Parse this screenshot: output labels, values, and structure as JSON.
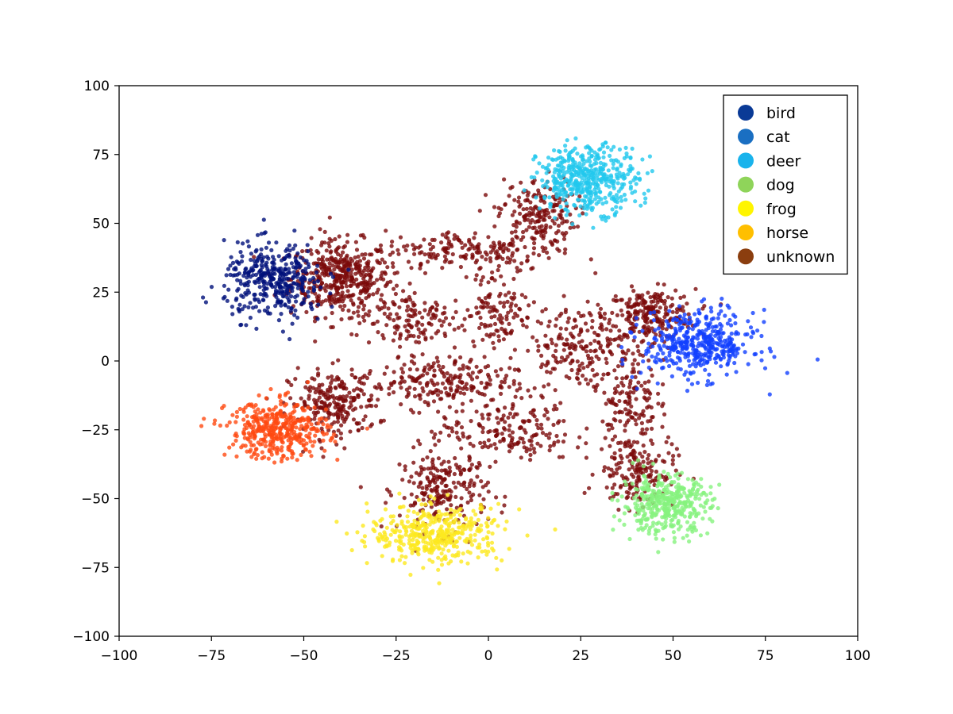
{
  "chart_data": {
    "type": "scatter",
    "title": "",
    "xlabel": "",
    "ylabel": "",
    "xlim": [
      -100,
      100
    ],
    "ylim": [
      -100,
      100
    ],
    "x_ticks": [
      -100,
      -75,
      -50,
      -25,
      0,
      25,
      50,
      75,
      100
    ],
    "y_ticks": [
      -100,
      -75,
      -50,
      -25,
      0,
      25,
      50,
      75,
      100
    ],
    "grid": false,
    "legend_position": "top-right",
    "legend": [
      {
        "name": "bird",
        "color": "#0a3a96"
      },
      {
        "name": "cat",
        "color": "#1a6fc2"
      },
      {
        "name": "deer",
        "color": "#19b3ec"
      },
      {
        "name": "dog",
        "color": "#8fd45a"
      },
      {
        "name": "frog",
        "color": "#fff500"
      },
      {
        "name": "horse",
        "color": "#ffbf00"
      },
      {
        "name": "unknown",
        "color": "#8b3e0f"
      }
    ],
    "clusters": [
      {
        "series": "bird",
        "color": "#00107a",
        "center": [
          -58,
          29
        ],
        "spread": [
          9,
          9
        ],
        "count": 380
      },
      {
        "series": "cat",
        "color": "#1240ff",
        "center": [
          57,
          6
        ],
        "spread": [
          10,
          8
        ],
        "count": 430
      },
      {
        "series": "deer",
        "color": "#22c8ee",
        "center": [
          27,
          66
        ],
        "spread": [
          9,
          8
        ],
        "count": 460
      },
      {
        "series": "dog",
        "color": "#86f27e",
        "center": [
          48,
          -52
        ],
        "spread": [
          8,
          7
        ],
        "count": 400
      },
      {
        "series": "frog",
        "color": "#fde81f",
        "center": [
          -14,
          -63
        ],
        "spread": [
          12,
          7
        ],
        "count": 420
      },
      {
        "series": "horse",
        "color": "#ff4a12",
        "center": [
          -57,
          -25
        ],
        "spread": [
          9,
          7
        ],
        "count": 400
      },
      {
        "series": "unknown",
        "color": "#7a0a0a",
        "center": [
          -40,
          30
        ],
        "spread": [
          9,
          9
        ],
        "count": 420
      },
      {
        "series": "unknown",
        "color": "#7a0a0a",
        "center": [
          44,
          17
        ],
        "spread": [
          8,
          6
        ],
        "count": 220
      },
      {
        "series": "unknown",
        "color": "#7a0a0a",
        "center": [
          13,
          53
        ],
        "spread": [
          7,
          9
        ],
        "count": 200
      },
      {
        "series": "unknown",
        "color": "#7a0a0a",
        "center": [
          -42,
          -16
        ],
        "spread": [
          8,
          8
        ],
        "count": 220
      },
      {
        "series": "unknown",
        "color": "#7a0a0a",
        "center": [
          -12,
          -47
        ],
        "spread": [
          8,
          10
        ],
        "count": 230
      },
      {
        "series": "unknown",
        "color": "#7a0a0a",
        "center": [
          40,
          -40
        ],
        "spread": [
          7,
          9
        ],
        "count": 180
      },
      {
        "series": "unknown",
        "color": "#7a0a0a",
        "center": [
          -15,
          -8
        ],
        "spread": [
          14,
          6
        ],
        "count": 220
      },
      {
        "series": "unknown",
        "color": "#7a0a0a",
        "center": [
          -5,
          40
        ],
        "spread": [
          16,
          5
        ],
        "count": 170
      },
      {
        "series": "unknown",
        "color": "#7a0a0a",
        "center": [
          25,
          5
        ],
        "spread": [
          12,
          10
        ],
        "count": 230
      },
      {
        "series": "unknown",
        "color": "#7a0a0a",
        "center": [
          -22,
          15
        ],
        "spread": [
          10,
          8
        ],
        "count": 150
      },
      {
        "series": "unknown",
        "color": "#7a0a0a",
        "center": [
          5,
          -25
        ],
        "spread": [
          12,
          8
        ],
        "count": 180
      },
      {
        "series": "unknown",
        "color": "#7a0a0a",
        "center": [
          3,
          20
        ],
        "spread": [
          6,
          10
        ],
        "count": 110
      },
      {
        "series": "unknown",
        "color": "#7a0a0a",
        "center": [
          38,
          -15
        ],
        "spread": [
          5,
          10
        ],
        "count": 120
      }
    ]
  }
}
